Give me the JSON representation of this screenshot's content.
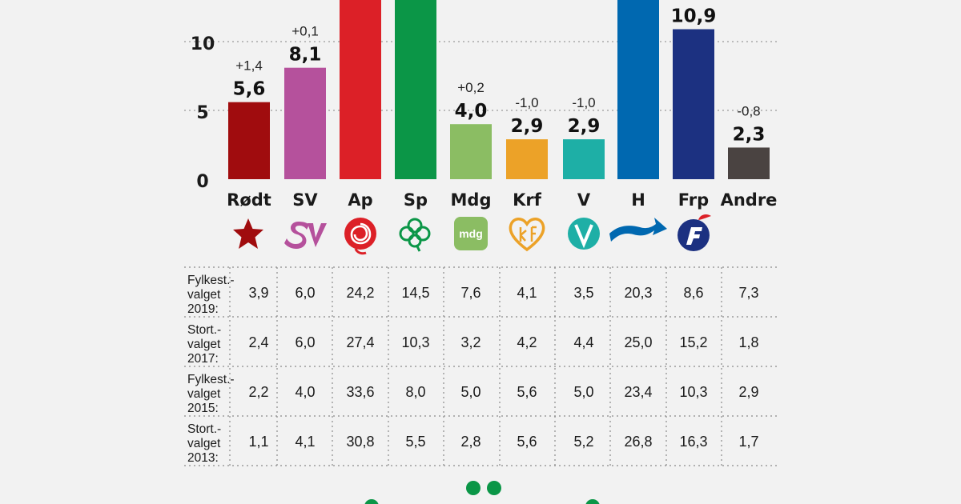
{
  "chart_data": {
    "type": "bar",
    "categories": [
      "Rødt",
      "SV",
      "Ap",
      "Sp",
      "Mdg",
      "Krf",
      "V",
      "H",
      "Frp",
      "Andre"
    ],
    "values": [
      5.6,
      8.1,
      null,
      null,
      4.0,
      2.9,
      2.9,
      null,
      10.9,
      2.3
    ],
    "value_labels": [
      "5,6",
      "8,1",
      "",
      "",
      "4,0",
      "2,9",
      "2,9",
      "",
      "10,9",
      "2,3"
    ],
    "changes": [
      "+1,4",
      "+0,1",
      "",
      "",
      "+0,2",
      "-1,0",
      "-1,0",
      "",
      "",
      "-0,8"
    ],
    "colors": [
      "#a00c0e",
      "#b5519c",
      "#dc2027",
      "#0b9647",
      "#8bbd63",
      "#eca228",
      "#1eafa6",
      "#0068b0",
      "#1c3181",
      "#4a4341"
    ],
    "y_ticks": [
      "0",
      "5",
      "10"
    ],
    "ylim": [
      0,
      13
    ],
    "grid": true
  },
  "party_icons": [
    "star-icon",
    "sv-logo-icon",
    "rose-icon",
    "clover-icon",
    "mdg-logo-icon",
    "krf-heart-icon",
    "v-logo-icon",
    "h-arrow-icon",
    "frp-logo-icon",
    ""
  ],
  "logo_text": {
    "mdg": "mdg",
    "v": "V"
  },
  "table": {
    "rows": [
      {
        "label": [
          "Fylkest.-",
          "valget",
          "2019:"
        ],
        "values": [
          "3,9",
          "6,0",
          "24,2",
          "14,5",
          "7,6",
          "4,1",
          "3,5",
          "20,3",
          "8,6",
          "7,3"
        ]
      },
      {
        "label": [
          "Stort.-",
          "valget",
          "2017:"
        ],
        "values": [
          "2,4",
          "6,0",
          "27,4",
          "10,3",
          "3,2",
          "4,2",
          "4,4",
          "25,0",
          "15,2",
          "1,8"
        ]
      },
      {
        "label": [
          "Fylkest.-",
          "valget",
          "2015:"
        ],
        "values": [
          "2,2",
          "4,0",
          "33,6",
          "8,0",
          "5,0",
          "5,6",
          "5,0",
          "23,4",
          "10,3",
          "2,9"
        ]
      },
      {
        "label": [
          "Stort.-",
          "valget",
          "2013:"
        ],
        "values": [
          "1,1",
          "4,1",
          "30,8",
          "5,5",
          "2,8",
          "5,6",
          "5,2",
          "26,8",
          "16,3",
          "1,7"
        ]
      }
    ]
  },
  "decor_color": "#0b9647"
}
